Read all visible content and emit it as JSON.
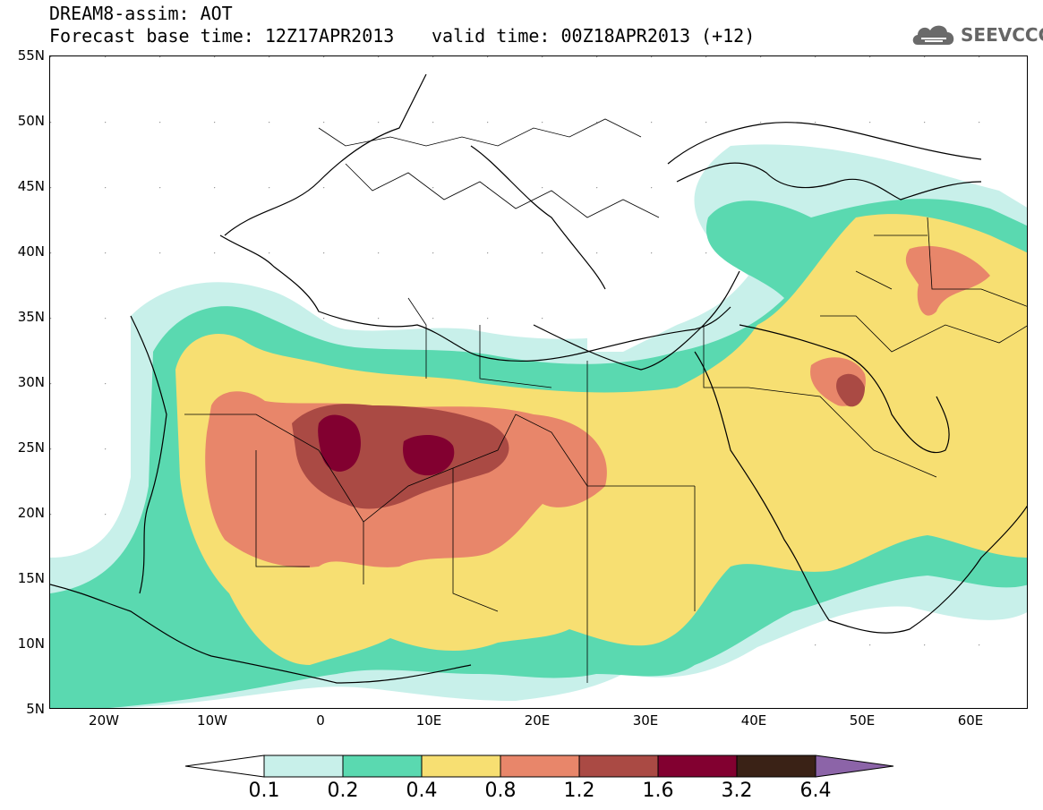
{
  "header": {
    "title": "DREAM8-assim: AOT",
    "base_time": "Forecast base time: 12Z17APR2013",
    "valid_time": "valid time: 00Z18APR2013 (+12)"
  },
  "logo": {
    "text": "SEEVCCC",
    "icon": "cloud-icon"
  },
  "map": {
    "lat_labels": [
      "55N",
      "50N",
      "45N",
      "40N",
      "35N",
      "30N",
      "25N",
      "20N",
      "15N",
      "10N",
      "5N"
    ],
    "lon_labels": [
      "20W",
      "10W",
      "0",
      "10E",
      "20E",
      "30E",
      "40E",
      "50E",
      "60E"
    ],
    "lon_range": [
      -25,
      65
    ],
    "lat_range": [
      5,
      55
    ]
  },
  "legend": {
    "labels": [
      "0.1",
      "0.2",
      "0.4",
      "0.8",
      "1.2",
      "1.6",
      "3.2",
      "6.4"
    ],
    "colors": [
      "#c8f0ea",
      "#5ad9b0",
      "#f7df72",
      "#e8866a",
      "#aa4a44",
      "#820030",
      "#3a2216",
      "#8c64a8"
    ]
  }
}
